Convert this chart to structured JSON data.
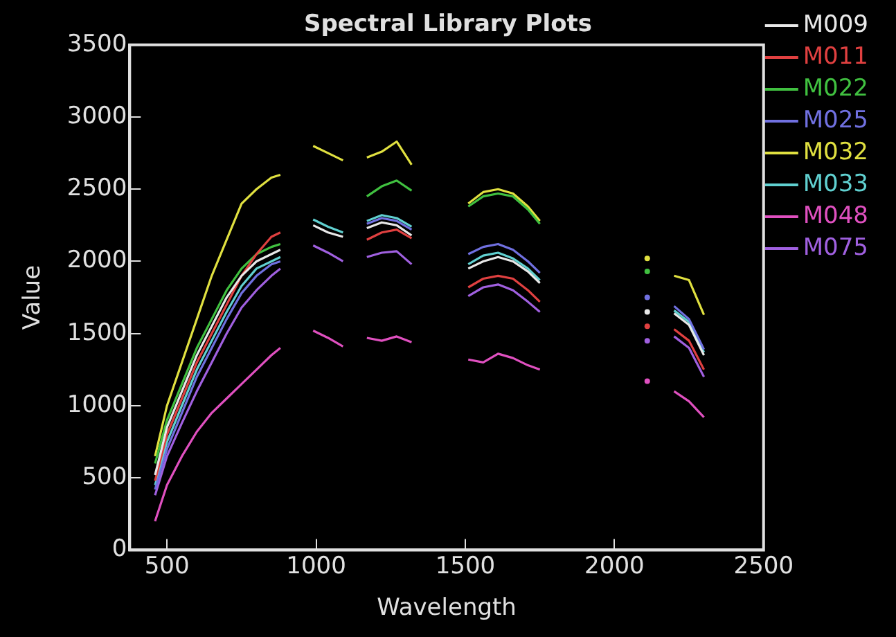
{
  "chart_data": {
    "type": "line",
    "title": "Spectral Library Plots",
    "xlabel": "Wavelength",
    "ylabel": "Value",
    "x": [
      460,
      500,
      550,
      600,
      650,
      700,
      750,
      800,
      850,
      880,
      940,
      990,
      1040,
      1090,
      1130,
      1170,
      1220,
      1270,
      1320,
      1420,
      1510,
      1560,
      1610,
      1660,
      1710,
      1750,
      1950,
      2110,
      2160,
      2200,
      2250,
      2300
    ],
    "xlim": [
      375,
      2500
    ],
    "xticks": [
      500,
      1000,
      1500,
      2000,
      2500
    ],
    "ylim": [
      0,
      3500
    ],
    "yticks": [
      0,
      500,
      1000,
      1500,
      2000,
      2500,
      3000,
      3500
    ],
    "grid": false,
    "legend": "right",
    "series": [
      {
        "name": "M009",
        "color": "#e8e8e8",
        "values": [
          520,
          850,
          1100,
          1350,
          1550,
          1750,
          1900,
          2000,
          2050,
          2080,
          null,
          2250,
          2200,
          2170,
          null,
          2230,
          2270,
          2250,
          2180,
          null,
          1950,
          2000,
          2030,
          2000,
          1930,
          1850,
          null,
          1650,
          null,
          1640,
          1560,
          1350
        ]
      },
      {
        "name": "M011",
        "color": "#e04040",
        "values": [
          480,
          800,
          1050,
          1300,
          1500,
          1700,
          1900,
          2050,
          2170,
          2200,
          null,
          null,
          null,
          null,
          null,
          2150,
          2200,
          2220,
          2160,
          null,
          1820,
          1880,
          1900,
          1880,
          1800,
          1720,
          null,
          1550,
          null,
          1530,
          1450,
          1250
        ]
      },
      {
        "name": "M022",
        "color": "#40c040",
        "values": [
          600,
          900,
          1150,
          1400,
          1600,
          1800,
          1950,
          2050,
          2100,
          2120,
          null,
          null,
          null,
          null,
          null,
          2450,
          2520,
          2560,
          2490,
          null,
          2380,
          2450,
          2470,
          2450,
          2360,
          2260,
          null,
          1930,
          null,
          null,
          null,
          null
        ]
      },
      {
        "name": "M025",
        "color": "#7070e0",
        "values": [
          420,
          700,
          950,
          1200,
          1400,
          1600,
          1780,
          1900,
          1980,
          2000,
          null,
          null,
          null,
          null,
          null,
          2260,
          2300,
          2280,
          2220,
          null,
          2050,
          2100,
          2120,
          2080,
          2000,
          1920,
          null,
          1750,
          null,
          1690,
          1600,
          1390
        ]
      },
      {
        "name": "M032",
        "color": "#e0e040",
        "values": [
          650,
          1000,
          1300,
          1600,
          1900,
          2150,
          2400,
          2500,
          2580,
          2600,
          null,
          2800,
          2750,
          2700,
          null,
          2720,
          2760,
          2830,
          2670,
          null,
          2400,
          2480,
          2500,
          2470,
          2380,
          2280,
          null,
          2020,
          null,
          1900,
          1870,
          1630
        ]
      },
      {
        "name": "M033",
        "color": "#60d0d0",
        "values": [
          450,
          750,
          1000,
          1250,
          1450,
          1650,
          1830,
          1950,
          2000,
          2030,
          null,
          2290,
          2240,
          2200,
          null,
          2280,
          2320,
          2300,
          2240,
          null,
          1980,
          2040,
          2060,
          2020,
          1950,
          1870,
          null,
          null,
          null,
          1660,
          1580,
          1370
        ]
      },
      {
        "name": "M048",
        "color": "#e050c0",
        "values": [
          200,
          450,
          650,
          820,
          950,
          1050,
          1150,
          1250,
          1350,
          1400,
          null,
          1520,
          1470,
          1410,
          null,
          1470,
          1450,
          1480,
          1440,
          null,
          1320,
          1300,
          1360,
          1330,
          1280,
          1250,
          null,
          1170,
          null,
          1100,
          1030,
          920
        ]
      },
      {
        "name": "M075",
        "color": "#a060e0",
        "values": [
          380,
          650,
          880,
          1100,
          1300,
          1500,
          1680,
          1800,
          1900,
          1950,
          null,
          2110,
          2060,
          2000,
          null,
          2030,
          2060,
          2070,
          1980,
          null,
          1760,
          1820,
          1840,
          1800,
          1720,
          1650,
          null,
          1450,
          null,
          1480,
          1400,
          1200
        ]
      }
    ]
  }
}
